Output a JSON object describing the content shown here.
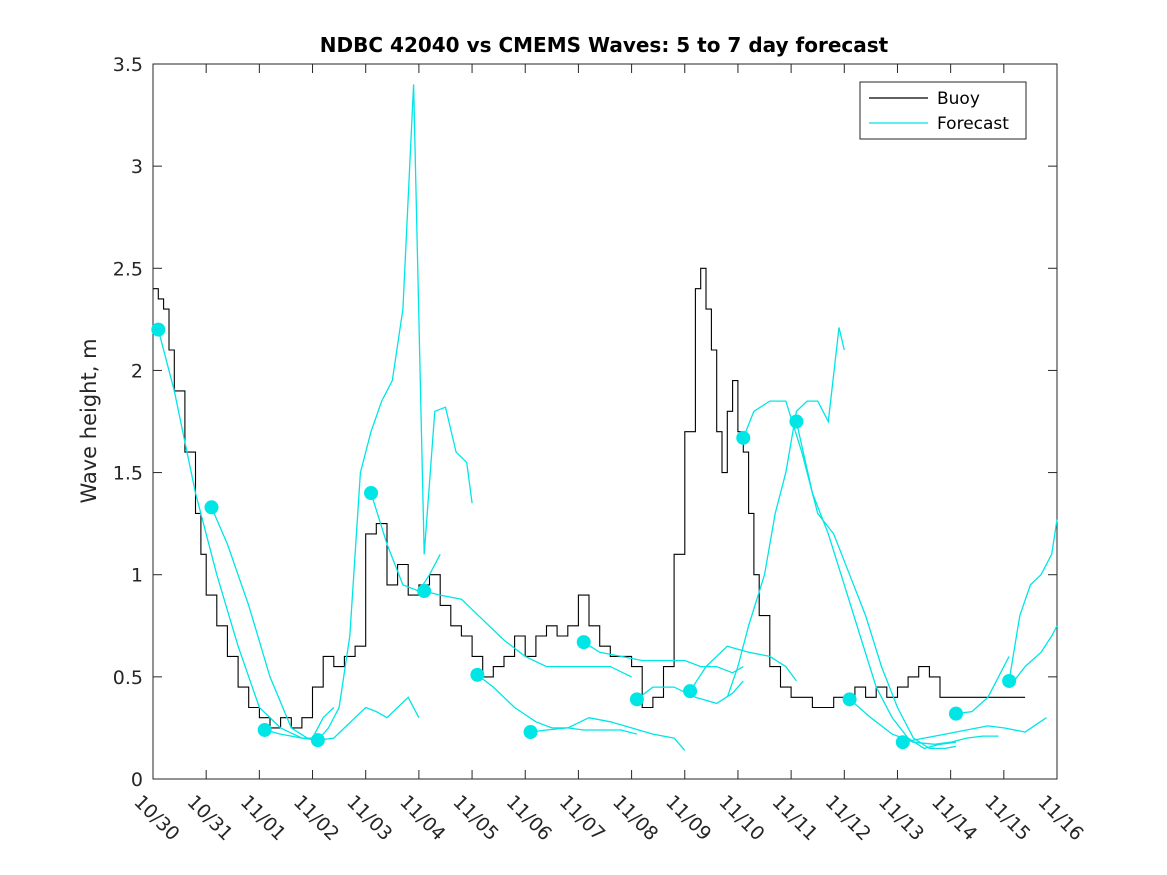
{
  "chart_data": {
    "type": "line",
    "title": "NDBC 42040 vs CMEMS Waves: 5 to 7 day forecast",
    "xlabel": "",
    "ylabel": "Wave height, m",
    "xlim": [
      0,
      17
    ],
    "ylim": [
      0,
      3.5
    ],
    "x_tick_values": [
      0,
      1,
      2,
      3,
      4,
      5,
      6,
      7,
      8,
      9,
      10,
      11,
      12,
      13,
      14,
      15,
      16,
      17
    ],
    "x_tick_labels": [
      "10/30",
      "10/31",
      "11/01",
      "11/02",
      "11/03",
      "11/04",
      "11/05",
      "11/06",
      "11/07",
      "11/08",
      "11/09",
      "11/10",
      "11/11",
      "11/12",
      "11/13",
      "11/14",
      "11/15",
      "11/16"
    ],
    "y_ticks": [
      0,
      0.5,
      1,
      1.5,
      2,
      2.5,
      3,
      3.5
    ],
    "y_tick_labels": [
      "0",
      "0.5",
      "1",
      "1.5",
      "2",
      "2.5",
      "3",
      "3.5"
    ],
    "legend": {
      "position": "top-right",
      "entries": [
        {
          "label": "Buoy",
          "color": "#000000"
        },
        {
          "label": "Forecast",
          "color": "#00e5e5"
        }
      ]
    },
    "colors": {
      "buoy": "#000000",
      "forecast": "#00e5e5",
      "axis": "#262626"
    },
    "buoy": {
      "name": "Buoy",
      "x": [
        0.0,
        0.1,
        0.2,
        0.3,
        0.4,
        0.6,
        0.8,
        0.9,
        1.0,
        1.2,
        1.4,
        1.6,
        1.8,
        2.0,
        2.2,
        2.4,
        2.6,
        2.8,
        3.0,
        3.2,
        3.4,
        3.6,
        3.8,
        4.0,
        4.2,
        4.4,
        4.6,
        4.8,
        5.0,
        5.2,
        5.4,
        5.6,
        5.8,
        6.0,
        6.2,
        6.4,
        6.6,
        6.8,
        7.0,
        7.2,
        7.4,
        7.6,
        7.8,
        8.0,
        8.2,
        8.4,
        8.6,
        8.8,
        9.0,
        9.2,
        9.4,
        9.6,
        9.8,
        10.0,
        10.2,
        10.3,
        10.4,
        10.5,
        10.6,
        10.7,
        10.8,
        10.9,
        11.0,
        11.1,
        11.2,
        11.3,
        11.4,
        11.6,
        11.8,
        12.0,
        12.2,
        12.4,
        12.6,
        12.8,
        13.0,
        13.2,
        13.4,
        13.6,
        13.8,
        14.0,
        14.2,
        14.4,
        14.6,
        14.8,
        15.0,
        15.2,
        15.4,
        15.6,
        15.8,
        16.0,
        16.2,
        16.4
      ],
      "y": [
        2.4,
        2.35,
        2.3,
        2.1,
        1.9,
        1.6,
        1.3,
        1.1,
        0.9,
        0.75,
        0.6,
        0.45,
        0.35,
        0.3,
        0.25,
        0.3,
        0.25,
        0.3,
        0.45,
        0.6,
        0.55,
        0.6,
        0.65,
        1.2,
        1.25,
        0.95,
        1.05,
        0.9,
        0.95,
        1.0,
        0.85,
        0.75,
        0.7,
        0.6,
        0.5,
        0.55,
        0.6,
        0.7,
        0.6,
        0.7,
        0.75,
        0.7,
        0.75,
        0.9,
        0.75,
        0.65,
        0.6,
        0.6,
        0.55,
        0.35,
        0.4,
        0.55,
        1.1,
        1.7,
        2.4,
        2.5,
        2.3,
        2.1,
        1.7,
        1.5,
        1.8,
        1.95,
        1.7,
        1.6,
        1.3,
        1.0,
        0.8,
        0.55,
        0.45,
        0.4,
        0.4,
        0.35,
        0.35,
        0.4,
        0.4,
        0.45,
        0.4,
        0.45,
        0.4,
        0.45,
        0.5,
        0.55,
        0.5,
        0.4,
        0.4,
        0.4,
        0.4,
        0.4,
        0.4,
        0.4,
        0.4,
        0.4
      ]
    },
    "forecasts": [
      {
        "name": "Forecast",
        "x": [
          0.1,
          0.4,
          0.8,
          1.2,
          1.6,
          2.0,
          2.4,
          2.8,
          3.0,
          3.2,
          3.4
        ],
        "y": [
          2.2,
          1.9,
          1.4,
          1.0,
          0.65,
          0.35,
          0.25,
          0.2,
          0.2,
          0.3,
          0.35
        ]
      },
      {
        "name": "Forecast",
        "x": [
          1.1,
          1.4,
          1.8,
          2.2,
          2.6,
          2.9
        ],
        "y": [
          1.33,
          1.15,
          0.85,
          0.5,
          0.25,
          0.2
        ]
      },
      {
        "name": "Forecast",
        "x": [
          2.1,
          2.4,
          2.8,
          3.1,
          3.4,
          3.6,
          3.8,
          4.0,
          4.2,
          4.4,
          4.6,
          4.8,
          5.0
        ],
        "y": [
          0.24,
          0.22,
          0.2,
          0.19,
          0.2,
          0.25,
          0.3,
          0.35,
          0.33,
          0.3,
          0.35,
          0.4,
          0.3
        ]
      },
      {
        "name": "Forecast",
        "x": [
          3.1,
          3.3,
          3.5,
          3.7,
          3.9,
          4.1,
          4.3,
          4.5,
          4.7,
          4.9,
          5.1,
          5.3,
          5.5,
          5.7,
          5.9,
          6.0
        ],
        "y": [
          0.19,
          0.25,
          0.35,
          0.7,
          1.5,
          1.7,
          1.85,
          1.95,
          2.3,
          3.4,
          1.1,
          1.8,
          1.82,
          1.6,
          1.55,
          1.35
        ]
      },
      {
        "name": "Forecast",
        "x": [
          4.1,
          4.4,
          4.7,
          5.0,
          5.2,
          5.4
        ],
        "y": [
          1.4,
          1.15,
          0.95,
          0.92,
          1.0,
          1.1
        ]
      },
      {
        "name": "Forecast",
        "x": [
          5.1,
          5.4,
          5.8,
          6.2,
          6.6,
          7.0,
          7.4,
          7.8,
          8.2,
          8.6,
          9.0
        ],
        "y": [
          0.92,
          0.9,
          0.88,
          0.78,
          0.68,
          0.6,
          0.55,
          0.55,
          0.55,
          0.55,
          0.5
        ]
      },
      {
        "name": "Forecast",
        "x": [
          6.1,
          6.4,
          6.8,
          7.2,
          7.5,
          7.8,
          8.1,
          8.4,
          8.8,
          9.1
        ],
        "y": [
          0.51,
          0.45,
          0.35,
          0.28,
          0.25,
          0.25,
          0.24,
          0.24,
          0.24,
          0.22
        ]
      },
      {
        "name": "Forecast",
        "x": [
          7.1,
          7.4,
          7.8,
          8.2,
          8.6,
          9.0,
          9.4,
          9.8,
          10.0
        ],
        "y": [
          0.23,
          0.24,
          0.25,
          0.3,
          0.28,
          0.25,
          0.22,
          0.2,
          0.14
        ]
      },
      {
        "name": "Forecast",
        "x": [
          8.1,
          8.4,
          8.8,
          9.2,
          9.6,
          10.0,
          10.3,
          10.6,
          10.9,
          11.1
        ],
        "y": [
          0.67,
          0.62,
          0.6,
          0.58,
          0.58,
          0.58,
          0.55,
          0.55,
          0.52,
          0.55
        ]
      },
      {
        "name": "Forecast",
        "x": [
          9.1,
          9.4,
          9.8,
          10.2,
          10.6,
          10.9,
          11.1
        ],
        "y": [
          0.39,
          0.45,
          0.45,
          0.4,
          0.37,
          0.42,
          0.48
        ]
      },
      {
        "name": "Forecast",
        "x": [
          10.1,
          10.4,
          10.8,
          11.2,
          11.6,
          11.9,
          12.1
        ],
        "y": [
          0.43,
          0.55,
          0.65,
          0.62,
          0.6,
          0.55,
          0.48
        ]
      },
      {
        "name": "Forecast",
        "x": [
          10.8,
          11.0,
          11.2,
          11.5,
          11.7,
          11.9,
          12.1,
          12.3,
          12.5,
          12.7,
          12.9,
          13.0
        ],
        "y": [
          0.4,
          0.55,
          0.75,
          1.0,
          1.3,
          1.5,
          1.8,
          1.85,
          1.85,
          1.75,
          2.21,
          2.1
        ]
      },
      {
        "name": "Forecast",
        "x": [
          11.1,
          11.3,
          11.6,
          11.9,
          12.2,
          12.5,
          12.8,
          13.1,
          13.4,
          13.7,
          14.0,
          14.3,
          14.6,
          14.9,
          15.1
        ],
        "y": [
          1.67,
          1.8,
          1.85,
          1.85,
          1.6,
          1.3,
          1.2,
          1.0,
          0.8,
          0.55,
          0.35,
          0.2,
          0.15,
          0.15,
          0.16
        ]
      },
      {
        "name": "Forecast",
        "x": [
          12.1,
          12.4,
          12.7,
          13.0,
          13.3,
          13.6,
          13.9,
          14.2,
          14.5,
          14.8,
          15.1
        ],
        "y": [
          1.75,
          1.4,
          1.2,
          0.95,
          0.7,
          0.45,
          0.3,
          0.2,
          0.15,
          0.17,
          0.18
        ]
      },
      {
        "name": "Forecast",
        "x": [
          13.1,
          13.5,
          13.9,
          14.3,
          14.7,
          15.0,
          15.3,
          15.6,
          15.9
        ],
        "y": [
          0.39,
          0.3,
          0.22,
          0.18,
          0.17,
          0.18,
          0.2,
          0.21,
          0.21
        ]
      },
      {
        "name": "Forecast",
        "x": [
          14.1,
          14.5,
          14.9,
          15.3,
          15.7,
          16.0,
          16.4,
          16.8
        ],
        "y": [
          0.18,
          0.2,
          0.22,
          0.24,
          0.26,
          0.25,
          0.23,
          0.3
        ]
      },
      {
        "name": "Forecast",
        "x": [
          15.1,
          15.4,
          15.7,
          15.9,
          16.0,
          16.1
        ],
        "y": [
          0.32,
          0.33,
          0.4,
          0.5,
          0.55,
          0.6
        ]
      },
      {
        "name": "Forecast",
        "x": [
          16.1,
          16.3,
          16.5,
          16.7,
          16.9,
          17.0
        ],
        "y": [
          0.48,
          0.8,
          0.95,
          1.0,
          1.1,
          1.27
        ]
      },
      {
        "name": "Forecast",
        "x": [
          16.1,
          16.4,
          16.7,
          16.9,
          17.0
        ],
        "y": [
          0.45,
          0.55,
          0.62,
          0.7,
          0.75
        ]
      }
    ],
    "forecast_start_points": {
      "x": [
        0.1,
        1.1,
        2.1,
        3.1,
        4.1,
        5.1,
        6.1,
        7.1,
        8.1,
        9.1,
        10.1,
        11.1,
        12.1,
        13.1,
        14.1,
        15.1,
        16.1
      ],
      "y": [
        2.2,
        1.33,
        0.24,
        0.19,
        1.4,
        0.92,
        0.51,
        0.23,
        0.67,
        0.39,
        0.43,
        1.67,
        1.75,
        0.39,
        0.18,
        0.32,
        0.48
      ]
    }
  }
}
